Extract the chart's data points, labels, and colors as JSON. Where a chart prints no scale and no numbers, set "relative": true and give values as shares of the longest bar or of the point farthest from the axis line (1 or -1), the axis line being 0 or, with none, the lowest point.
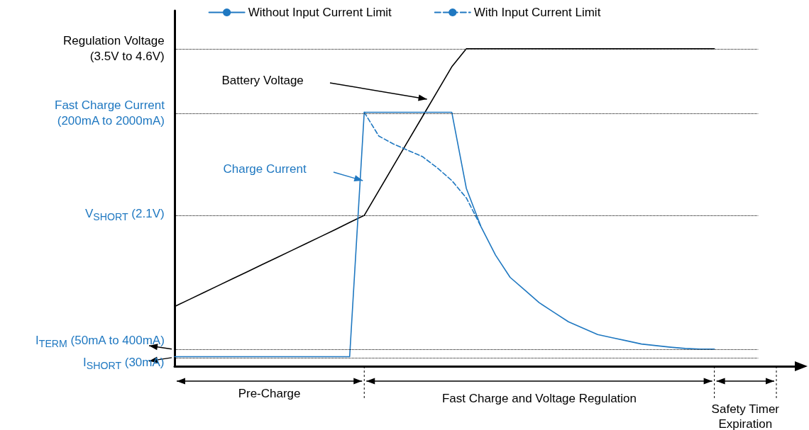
{
  "chart_data": {
    "type": "line",
    "relative": true,
    "grid": false,
    "legend": "top",
    "marker": "none",
    "line_style": "solid",
    "categories": [
      null,
      null,
      null,
      null,
      null,
      null,
      null,
      null,
      null,
      null,
      null,
      null,
      null,
      null,
      null,
      null,
      null,
      null,
      null,
      null,
      null,
      null,
      null,
      null,
      null,
      null,
      null,
      null,
      null,
      null,
      null,
      null,
      null,
      null,
      null,
      null,
      null,
      null,
      null,
      null,
      null,
      null,
      null,
      null
    ],
    "series": [
      {
        "color": "#000000",
        "values": [
          0.188,
          0.21,
          0.232,
          0.254,
          0.276,
          0.298,
          0.32,
          0.342,
          0.364,
          0.386,
          0.408,
          0.43,
          0.453,
          0.475,
          0.553,
          0.631,
          0.709,
          0.787,
          0.865,
          0.943,
          1,
          1,
          1,
          1,
          1,
          1,
          1,
          1,
          1,
          1,
          1,
          1,
          1,
          1,
          1,
          1,
          1,
          1,
          null,
          null,
          null,
          null,
          null,
          null
        ]
      },
      {
        "name": "Without Input Current Limit",
        "color": "#1f78c1",
        "values": [
          0.03,
          0.03,
          0.03,
          0.03,
          0.03,
          0.03,
          0.03,
          0.03,
          0.03,
          0.03,
          0.03,
          0.03,
          0.03,
          0.8,
          0.8,
          0.8,
          0.8,
          0.8,
          0.8,
          0.8,
          0.56,
          0.44,
          0.35,
          0.28,
          0.24,
          0.2,
          0.17,
          0.14,
          0.12,
          0.1,
          0.09,
          0.08,
          0.07,
          0.065,
          0.06,
          0.056,
          0.054,
          0.054,
          null,
          null,
          null,
          null,
          null,
          null
        ]
      },
      {
        "name": "With Input Current Limit",
        "color": "#1f78c1",
        "line_style": "dashed",
        "values": [
          null,
          null,
          null,
          null,
          null,
          null,
          null,
          null,
          null,
          null,
          null,
          null,
          null,
          0.8,
          0.725,
          0.7,
          0.68,
          0.66,
          0.625,
          0.585,
          0.53,
          0.44,
          null,
          null,
          null,
          null,
          null,
          null,
          null,
          null,
          null,
          null,
          null,
          null,
          null,
          null,
          null,
          null,
          null,
          null,
          null,
          null,
          null,
          null
        ]
      }
    ],
    "ref_lines": [
      {
        "axis": "y",
        "value": 1,
        "label": "Regulation Voltage\n(3.5V to 4.6V)",
        "color": "#000000",
        "line_style": "dotted"
      },
      {
        "axis": "y",
        "value": 0.797,
        "label": "Fast Charge Current\n(200mA to 2000mA)",
        "color": "#000000",
        "line_style": "dotted"
      },
      {
        "axis": "y",
        "value": 0.475,
        "label": "V$_{SHORT}$ (2.1V)",
        "color": "#000000",
        "line_style": "dotted"
      },
      {
        "axis": "y",
        "value": 0.054,
        "label": "I$_{TERM}$ (50mA to 400mA)",
        "color": "#000000",
        "line_style": "dotted"
      },
      {
        "axis": "y",
        "value": 0.027,
        "label": "I$_{SHORT}$ (30mA)",
        "color": "#000000",
        "line_style": "dotted"
      }
    ],
    "annotations": [
      "Battery Voltage",
      "Charge Current",
      "Pre-Charge",
      "Fast Charge and Voltage Regulation",
      "Safety Timer Expiration"
    ]
  }
}
